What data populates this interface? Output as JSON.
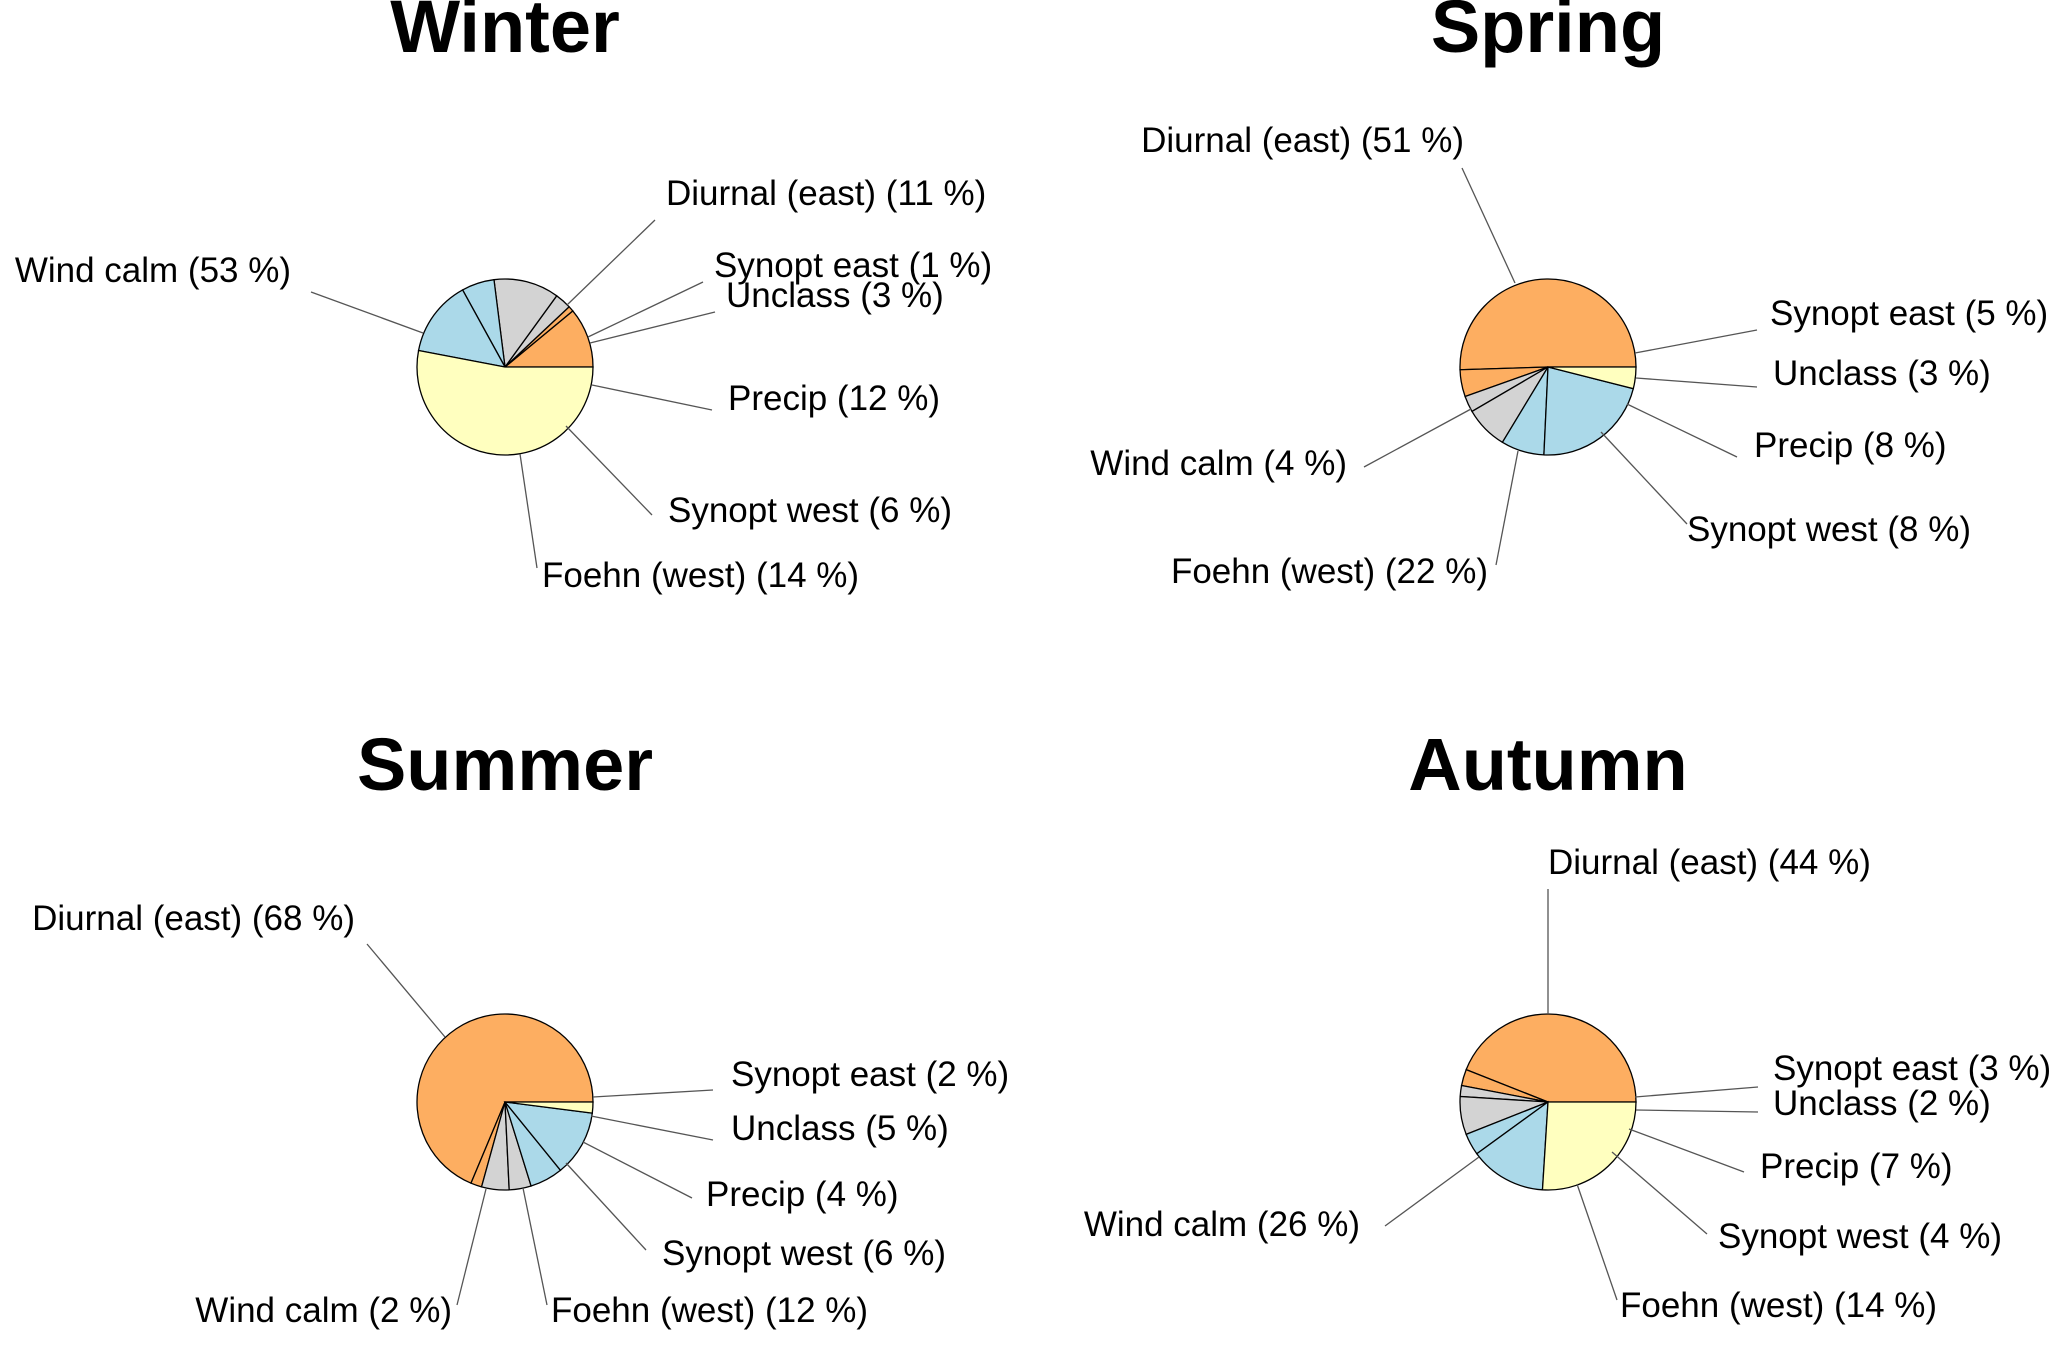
{
  "colors": {
    "Diurnal (east)": "#FDAE61",
    "Synopt east": "#FDAE61",
    "Unclass": "#D3D3D3",
    "Precip": "#D3D3D3",
    "Synopt west": "#ABD9E9",
    "Foehn (west)": "#ABD9E9",
    "Wind calm": "#FFFFBF"
  },
  "chart_data": [
    {
      "type": "pie",
      "title": "Winter",
      "slices": [
        {
          "name": "Diurnal (east)",
          "value": 11,
          "label": "Diurnal (east) (11 %)"
        },
        {
          "name": "Synopt east",
          "value": 1,
          "label": "Synopt east (1 %)"
        },
        {
          "name": "Unclass",
          "value": 3,
          "label": "Unclass (3 %)"
        },
        {
          "name": "Precip",
          "value": 12,
          "label": "Precip (12 %)"
        },
        {
          "name": "Synopt west",
          "value": 6,
          "label": "Synopt west (6 %)"
        },
        {
          "name": "Foehn (west)",
          "value": 14,
          "label": "Foehn (west) (14 %)"
        },
        {
          "name": "Wind calm",
          "value": 53,
          "label": "Wind calm (53 %)"
        }
      ]
    },
    {
      "type": "pie",
      "title": "Spring",
      "slices": [
        {
          "name": "Diurnal (east)",
          "value": 51,
          "label": "Diurnal (east) (51 %)"
        },
        {
          "name": "Synopt east",
          "value": 5,
          "label": "Synopt east (5 %)"
        },
        {
          "name": "Unclass",
          "value": 3,
          "label": "Unclass (3 %)"
        },
        {
          "name": "Precip",
          "value": 8,
          "label": "Precip (8 %)"
        },
        {
          "name": "Synopt west",
          "value": 8,
          "label": "Synopt west (8 %)"
        },
        {
          "name": "Foehn (west)",
          "value": 22,
          "label": "Foehn (west) (22 %)"
        },
        {
          "name": "Wind calm",
          "value": 4,
          "label": "Wind calm (4 %)"
        }
      ]
    },
    {
      "type": "pie",
      "title": "Summer",
      "slices": [
        {
          "name": "Diurnal (east)",
          "value": 68,
          "label": "Diurnal (east) (68 %)"
        },
        {
          "name": "Synopt east",
          "value": 2,
          "label": "Synopt east (2 %)"
        },
        {
          "name": "Unclass",
          "value": 5,
          "label": "Unclass (5 %)"
        },
        {
          "name": "Precip",
          "value": 4,
          "label": "Precip (4 %)"
        },
        {
          "name": "Synopt west",
          "value": 6,
          "label": "Synopt west (6 %)"
        },
        {
          "name": "Foehn (west)",
          "value": 12,
          "label": "Foehn (west) (12 %)"
        },
        {
          "name": "Wind calm",
          "value": 2,
          "label": "Wind calm (2 %)"
        }
      ]
    },
    {
      "type": "pie",
      "title": "Autumn",
      "slices": [
        {
          "name": "Diurnal (east)",
          "value": 44,
          "label": "Diurnal (east) (44 %)"
        },
        {
          "name": "Synopt east",
          "value": 3,
          "label": "Synopt east (3 %)"
        },
        {
          "name": "Unclass",
          "value": 2,
          "label": "Unclass (2 %)"
        },
        {
          "name": "Precip",
          "value": 7,
          "label": "Precip (7 %)"
        },
        {
          "name": "Synopt west",
          "value": 4,
          "label": "Synopt west (4 %)"
        },
        {
          "name": "Foehn (west)",
          "value": 14,
          "label": "Foehn (west) (14 %)"
        },
        {
          "name": "Wind calm",
          "value": 26,
          "label": "Wind calm (26 %)"
        }
      ]
    }
  ]
}
